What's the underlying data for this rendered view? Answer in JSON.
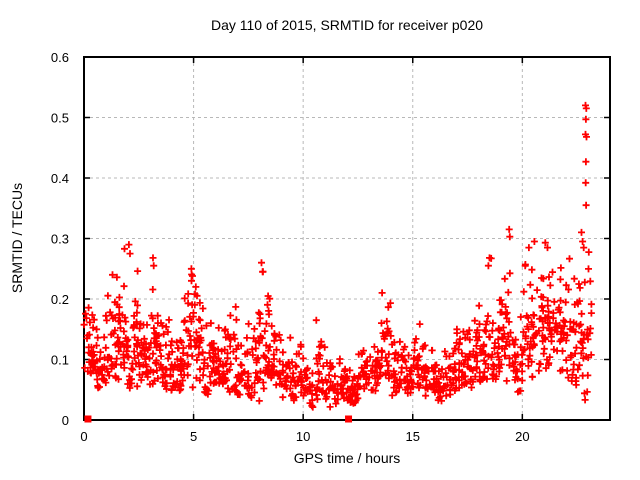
{
  "chart_data": {
    "type": "scatter",
    "title": "Day 110 of 2015, SRMTID for receiver p020",
    "xlabel": "GPS time / hours",
    "ylabel": "SRMTID / TECUs",
    "xlim": [
      0,
      24
    ],
    "ylim": [
      0,
      0.6
    ],
    "xticks": [
      0,
      5,
      10,
      15,
      20
    ],
    "xtick_labels": [
      "0",
      "5",
      "10",
      "15",
      "20"
    ],
    "yticks": [
      0,
      0.1,
      0.2,
      0.3,
      0.4,
      0.5,
      0.6
    ],
    "ytick_labels": [
      "0",
      "0.1",
      "0.2",
      "0.3",
      "0.4",
      "0.5",
      "0.6"
    ],
    "legend": "none",
    "grid": {
      "show": true,
      "color": "#b8b8b8",
      "dash": "3,3"
    },
    "axis_color": "#000000",
    "marker": {
      "shape": "plus",
      "color": "#ff0000",
      "size": 7,
      "stroke_width": 1.8
    },
    "note": "Dense ~1300-point scatter; point cloud reconstructed from per-half-hour density envelope bins [x_start, x_end, y_min, y_max, n_points], plus individually-read outlier points.",
    "seed": 20150110,
    "density_envelope": {
      "bins": [
        [
          0.0,
          0.5,
          0.06,
          0.21,
          30
        ],
        [
          0.5,
          1.0,
          0.05,
          0.18,
          28
        ],
        [
          1.0,
          1.5,
          0.06,
          0.24,
          30
        ],
        [
          1.5,
          2.0,
          0.05,
          0.285,
          32
        ],
        [
          2.0,
          2.5,
          0.05,
          0.29,
          32
        ],
        [
          2.5,
          3.0,
          0.05,
          0.22,
          30
        ],
        [
          3.0,
          3.5,
          0.05,
          0.27,
          30
        ],
        [
          3.5,
          4.0,
          0.04,
          0.2,
          30
        ],
        [
          4.0,
          4.5,
          0.04,
          0.18,
          30
        ],
        [
          4.5,
          5.0,
          0.05,
          0.25,
          30
        ],
        [
          5.0,
          5.5,
          0.06,
          0.22,
          30
        ],
        [
          5.5,
          6.0,
          0.04,
          0.18,
          28
        ],
        [
          6.0,
          6.5,
          0.05,
          0.18,
          28
        ],
        [
          6.5,
          7.0,
          0.04,
          0.21,
          28
        ],
        [
          7.0,
          7.5,
          0.04,
          0.16,
          28
        ],
        [
          7.5,
          8.0,
          0.03,
          0.23,
          28
        ],
        [
          8.0,
          8.5,
          0.05,
          0.26,
          30
        ],
        [
          8.5,
          9.0,
          0.05,
          0.19,
          26
        ],
        [
          9.0,
          9.5,
          0.03,
          0.15,
          26
        ],
        [
          9.5,
          10.0,
          0.03,
          0.13,
          26
        ],
        [
          10.0,
          10.5,
          0.02,
          0.12,
          24
        ],
        [
          10.5,
          11.0,
          0.03,
          0.17,
          24
        ],
        [
          11.0,
          11.5,
          0.02,
          0.12,
          24
        ],
        [
          11.5,
          12.0,
          0.03,
          0.12,
          26
        ],
        [
          12.0,
          12.5,
          0.02,
          0.1,
          26
        ],
        [
          12.5,
          13.0,
          0.04,
          0.14,
          26
        ],
        [
          13.0,
          13.5,
          0.04,
          0.17,
          26
        ],
        [
          13.5,
          14.0,
          0.05,
          0.21,
          26
        ],
        [
          14.0,
          14.5,
          0.04,
          0.17,
          26
        ],
        [
          14.5,
          15.0,
          0.04,
          0.15,
          26
        ],
        [
          15.0,
          15.5,
          0.05,
          0.17,
          26
        ],
        [
          15.5,
          16.0,
          0.04,
          0.13,
          28
        ],
        [
          16.0,
          16.5,
          0.03,
          0.13,
          28
        ],
        [
          16.5,
          17.0,
          0.03,
          0.15,
          28
        ],
        [
          17.0,
          17.5,
          0.05,
          0.21,
          28
        ],
        [
          17.5,
          18.0,
          0.05,
          0.18,
          28
        ],
        [
          18.0,
          18.5,
          0.06,
          0.21,
          28
        ],
        [
          18.5,
          19.0,
          0.06,
          0.27,
          28
        ],
        [
          19.0,
          19.5,
          0.05,
          0.32,
          30
        ],
        [
          19.5,
          20.0,
          0.04,
          0.18,
          28
        ],
        [
          20.0,
          20.5,
          0.05,
          0.3,
          28
        ],
        [
          20.5,
          21.0,
          0.07,
          0.3,
          30
        ],
        [
          21.0,
          21.5,
          0.08,
          0.3,
          30
        ],
        [
          21.5,
          22.0,
          0.08,
          0.28,
          28
        ],
        [
          22.0,
          22.5,
          0.05,
          0.27,
          28
        ],
        [
          22.5,
          23.0,
          0.03,
          0.31,
          30
        ],
        [
          23.0,
          23.15,
          0.08,
          0.3,
          8
        ]
      ]
    },
    "outliers": [
      [
        22.88,
        0.52
      ],
      [
        22.92,
        0.515
      ],
      [
        22.9,
        0.497
      ],
      [
        22.88,
        0.472
      ],
      [
        22.93,
        0.468
      ],
      [
        22.9,
        0.427
      ],
      [
        22.89,
        0.392
      ],
      [
        22.91,
        0.355
      ],
      [
        22.7,
        0.31
      ],
      [
        22.75,
        0.295
      ],
      [
        22.8,
        0.285
      ],
      [
        19.4,
        0.315
      ],
      [
        19.43,
        0.303
      ],
      [
        2.05,
        0.29
      ],
      [
        1.85,
        0.283
      ],
      [
        2.1,
        0.275
      ],
      [
        3.15,
        0.268
      ],
      [
        3.18,
        0.255
      ],
      [
        8.1,
        0.26
      ],
      [
        8.15,
        0.245
      ],
      [
        4.9,
        0.25
      ],
      [
        4.95,
        0.238
      ],
      [
        1.3,
        0.24
      ],
      [
        5.1,
        0.22
      ],
      [
        13.6,
        0.21
      ],
      [
        10.6,
        0.165
      ],
      [
        18.5,
        0.268
      ],
      [
        18.45,
        0.255
      ],
      [
        20.55,
        0.295
      ],
      [
        21.05,
        0.293
      ],
      [
        20.3,
        0.285
      ],
      [
        21.15,
        0.285
      ]
    ],
    "zero_markers": {
      "shape": "filled-square",
      "color": "#ff0000",
      "size": 7,
      "points": [
        [
          0.18,
          0
        ],
        [
          12.07,
          0
        ]
      ]
    }
  }
}
